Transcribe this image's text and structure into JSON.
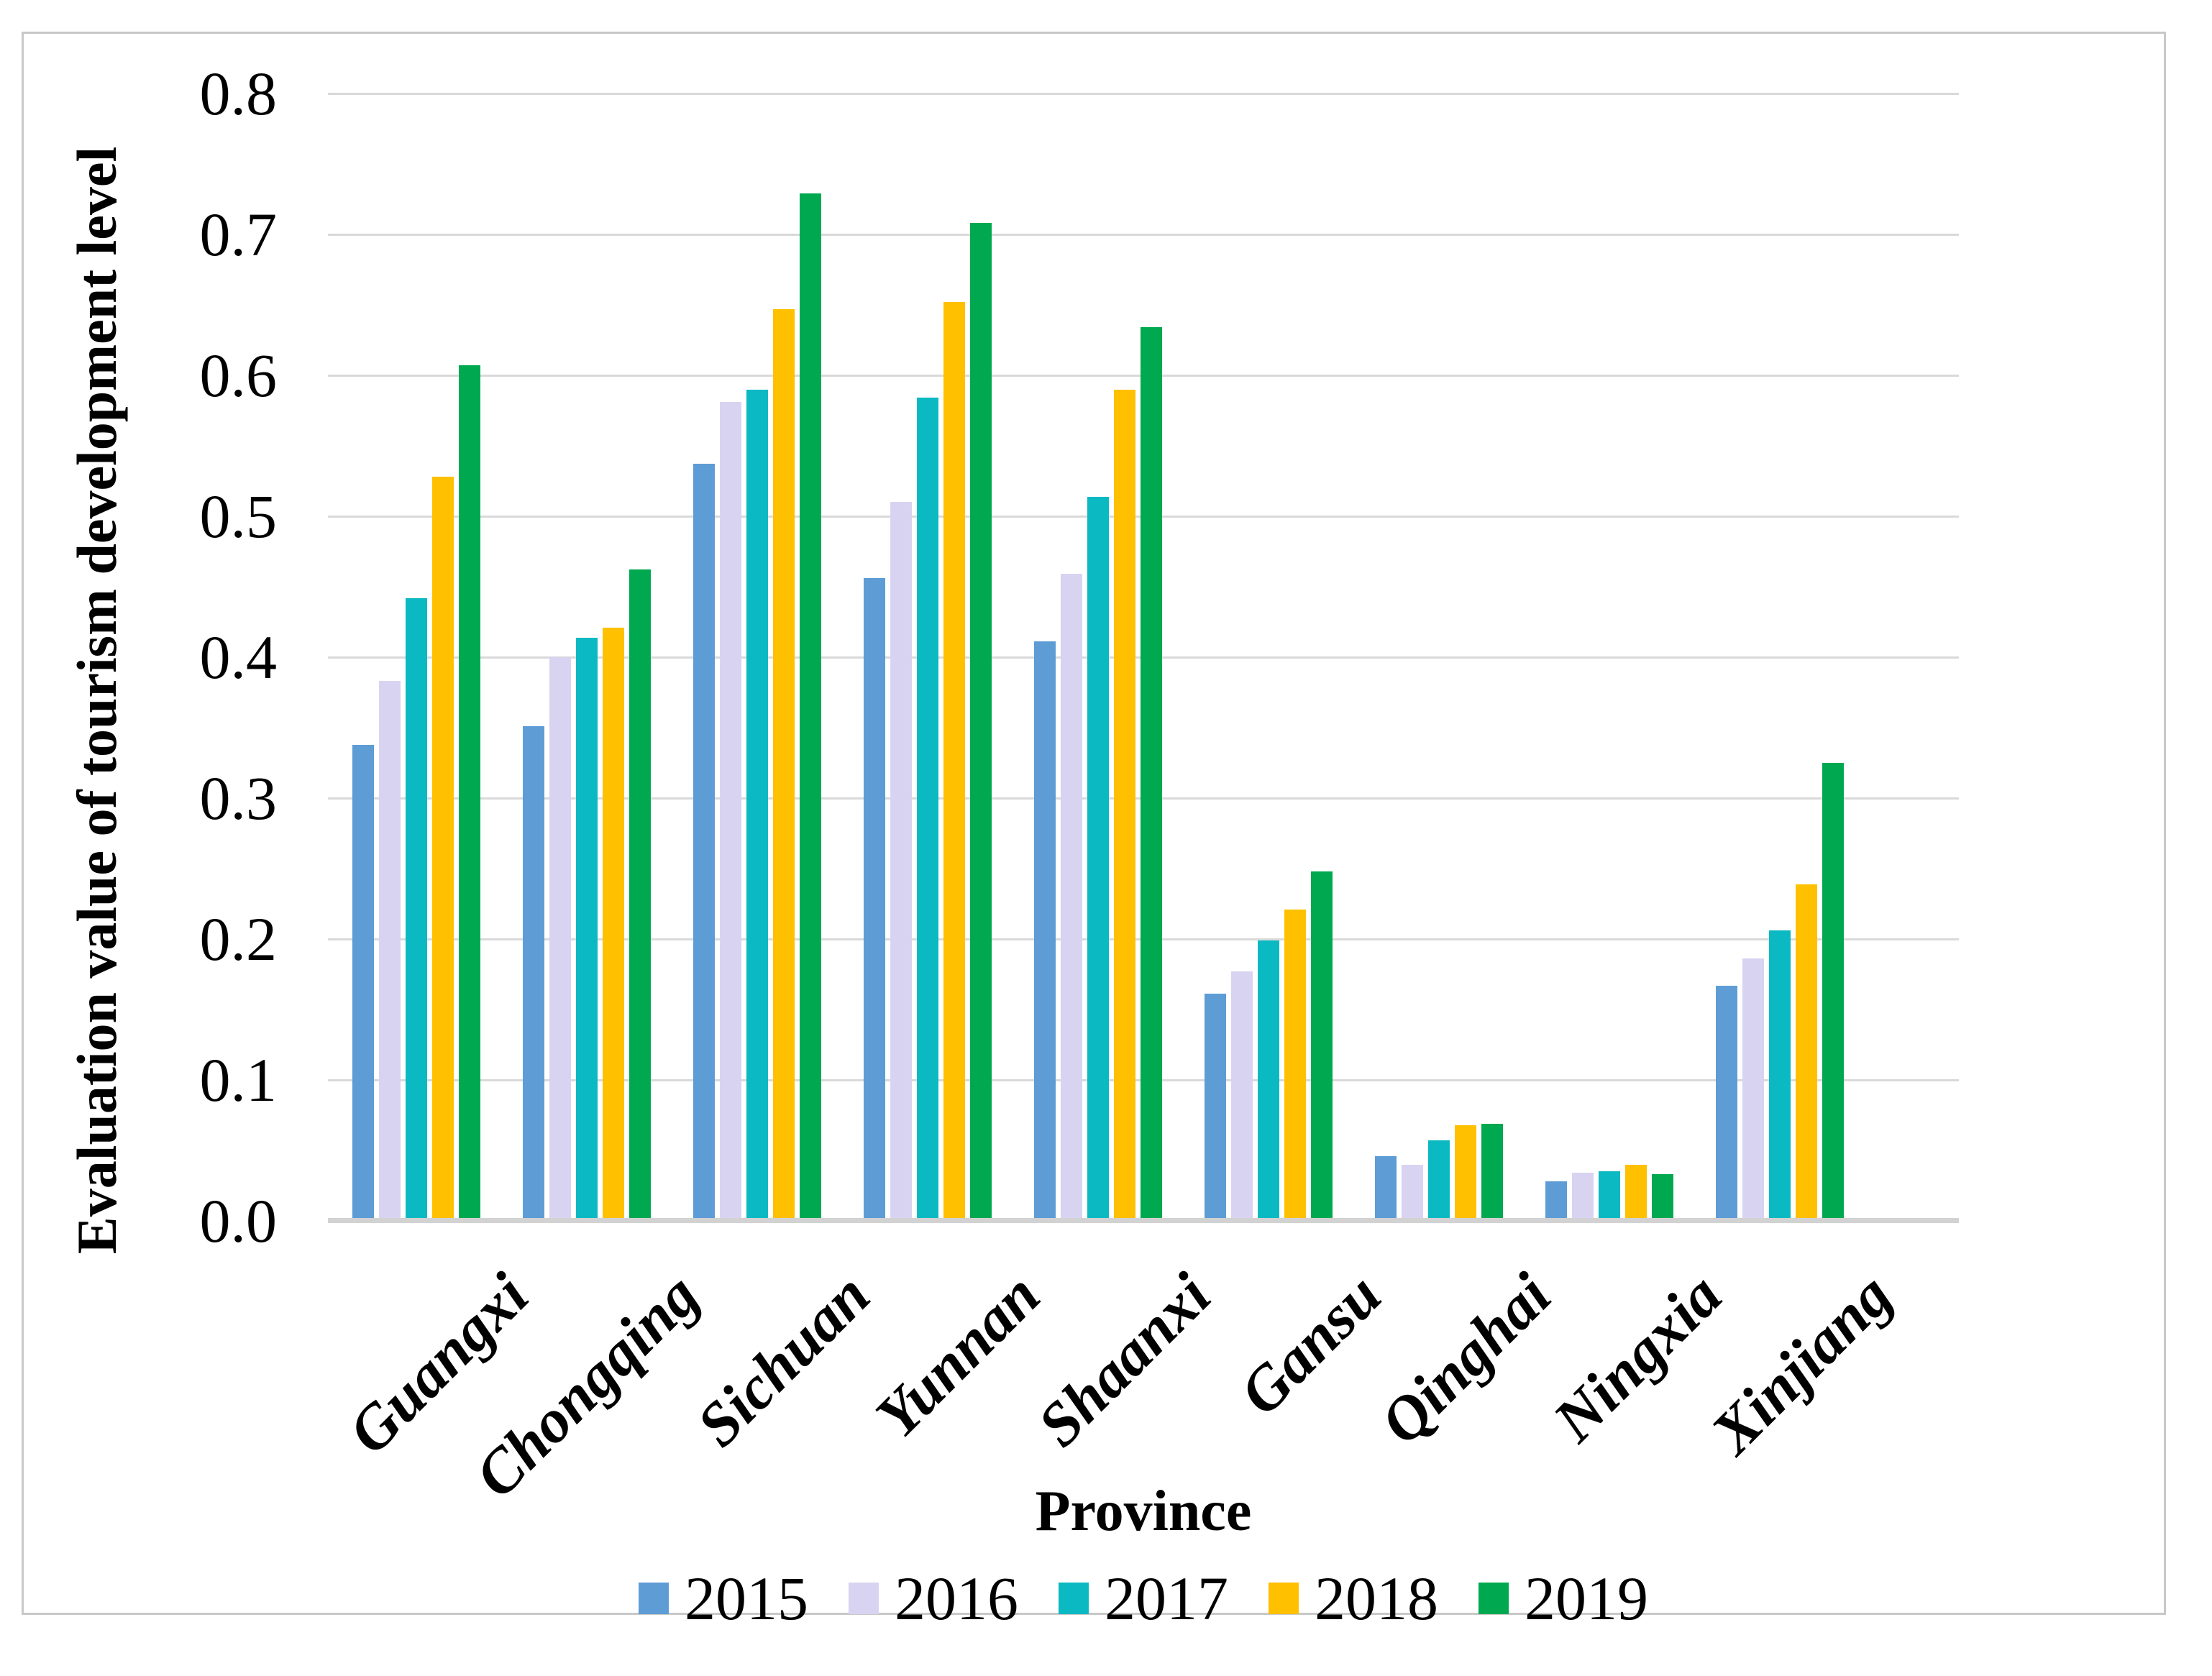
{
  "figure": {
    "y_axis_title": "Evaluation value of tourism development level",
    "x_axis_title": "Province"
  },
  "chart_data": {
    "type": "bar",
    "title": "",
    "xlabel": "Province",
    "ylabel": "Evaluation value of tourism development level",
    "ylim": [
      0,
      0.8
    ],
    "ytick_step": 0.1,
    "yticks": [
      "0.0",
      "0.1",
      "0.2",
      "0.3",
      "0.4",
      "0.5",
      "0.6",
      "0.7",
      "0.8"
    ],
    "grid": true,
    "legend_position": "bottom",
    "categories": [
      "Guangxi",
      "Chongqing",
      "Sichuan",
      "Yunnan",
      "Shaanxi",
      "Gansu",
      "Qinghai",
      "Ningxia",
      "Xinjiang"
    ],
    "series": [
      {
        "name": "2015",
        "color": "#5E9CD6",
        "values": [
          0.338,
          0.351,
          0.537,
          0.456,
          0.411,
          0.161,
          0.046,
          0.028,
          0.167
        ]
      },
      {
        "name": "2016",
        "color": "#D9D3F2",
        "values": [
          0.383,
          0.4,
          0.581,
          0.51,
          0.459,
          0.177,
          0.04,
          0.034,
          0.186
        ]
      },
      {
        "name": "2017",
        "color": "#0BB9C3",
        "values": [
          0.442,
          0.414,
          0.59,
          0.584,
          0.514,
          0.199,
          0.057,
          0.035,
          0.206
        ]
      },
      {
        "name": "2018",
        "color": "#FFC000",
        "values": [
          0.528,
          0.421,
          0.647,
          0.652,
          0.59,
          0.221,
          0.068,
          0.04,
          0.239
        ]
      },
      {
        "name": "2019",
        "color": "#00A950",
        "values": [
          0.607,
          0.462,
          0.729,
          0.708,
          0.634,
          0.248,
          0.069,
          0.033,
          0.325
        ]
      }
    ],
    "colors": {
      "gridline": "#D9D9D9",
      "axis_line": "#D2D2D2",
      "frame_border": "#C8C8C8",
      "text": "#000000"
    }
  }
}
